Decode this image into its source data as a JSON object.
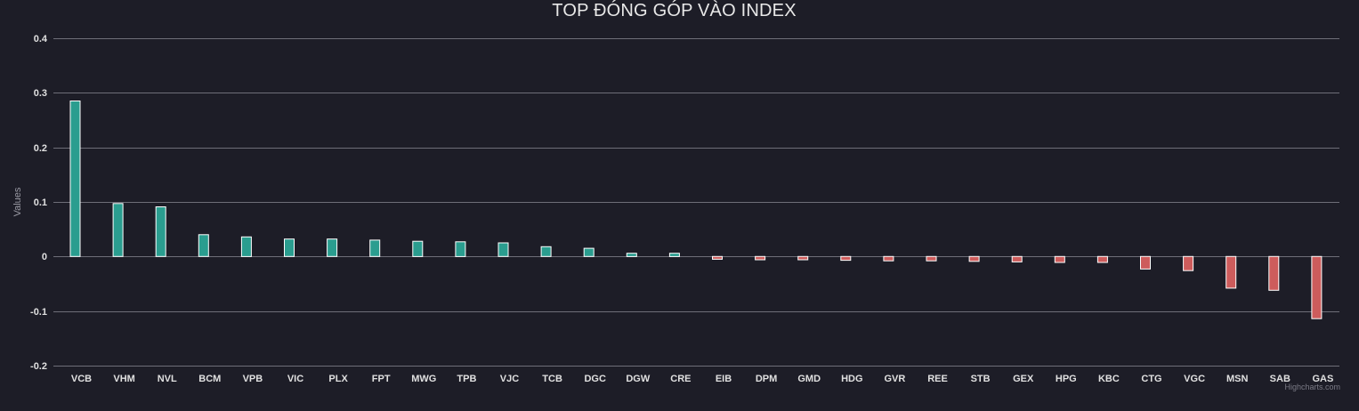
{
  "chart_data": {
    "type": "bar",
    "title": "TOP ĐÓNG GÓP VÀO INDEX",
    "ylabel": "Values",
    "xlabel": "",
    "ylim": [
      -0.2,
      0.4
    ],
    "yticks": [
      0.4,
      0.3,
      0.2,
      0.1,
      0,
      -0.1,
      -0.2
    ],
    "ytick_labels": [
      "0.4",
      "0.3",
      "0.2",
      "0.1",
      "0",
      "-0.1",
      "-0.2"
    ],
    "grid": true,
    "legend": "none",
    "categories": [
      "VCB",
      "VHM",
      "NVL",
      "BCM",
      "VPB",
      "VIC",
      "PLX",
      "FPT",
      "MWG",
      "TPB",
      "VJC",
      "TCB",
      "DGC",
      "DGW",
      "CRE",
      "EIB",
      "DPM",
      "GMD",
      "HDG",
      "GVR",
      "REE",
      "STB",
      "GEX",
      "HPG",
      "KBC",
      "CTG",
      "VGC",
      "MSN",
      "SAB",
      "GAS"
    ],
    "values": [
      0.285,
      0.097,
      0.091,
      0.04,
      0.036,
      0.032,
      0.032,
      0.03,
      0.028,
      0.027,
      0.025,
      0.018,
      0.015,
      0.006,
      0.006,
      -0.005,
      -0.006,
      -0.006,
      -0.007,
      -0.008,
      -0.008,
      -0.009,
      -0.01,
      -0.011,
      -0.011,
      -0.023,
      -0.026,
      -0.058,
      -0.062,
      -0.114
    ],
    "colors": {
      "positive": "#2a9d8f",
      "negative": "#cd5c5c",
      "bar_border": "#ffffff",
      "grid": "#6e6e78",
      "text": "#e0e0e0",
      "axis_label": "#9a9aa4",
      "background": "#1d1d27"
    }
  },
  "credits": "Highcharts.com"
}
